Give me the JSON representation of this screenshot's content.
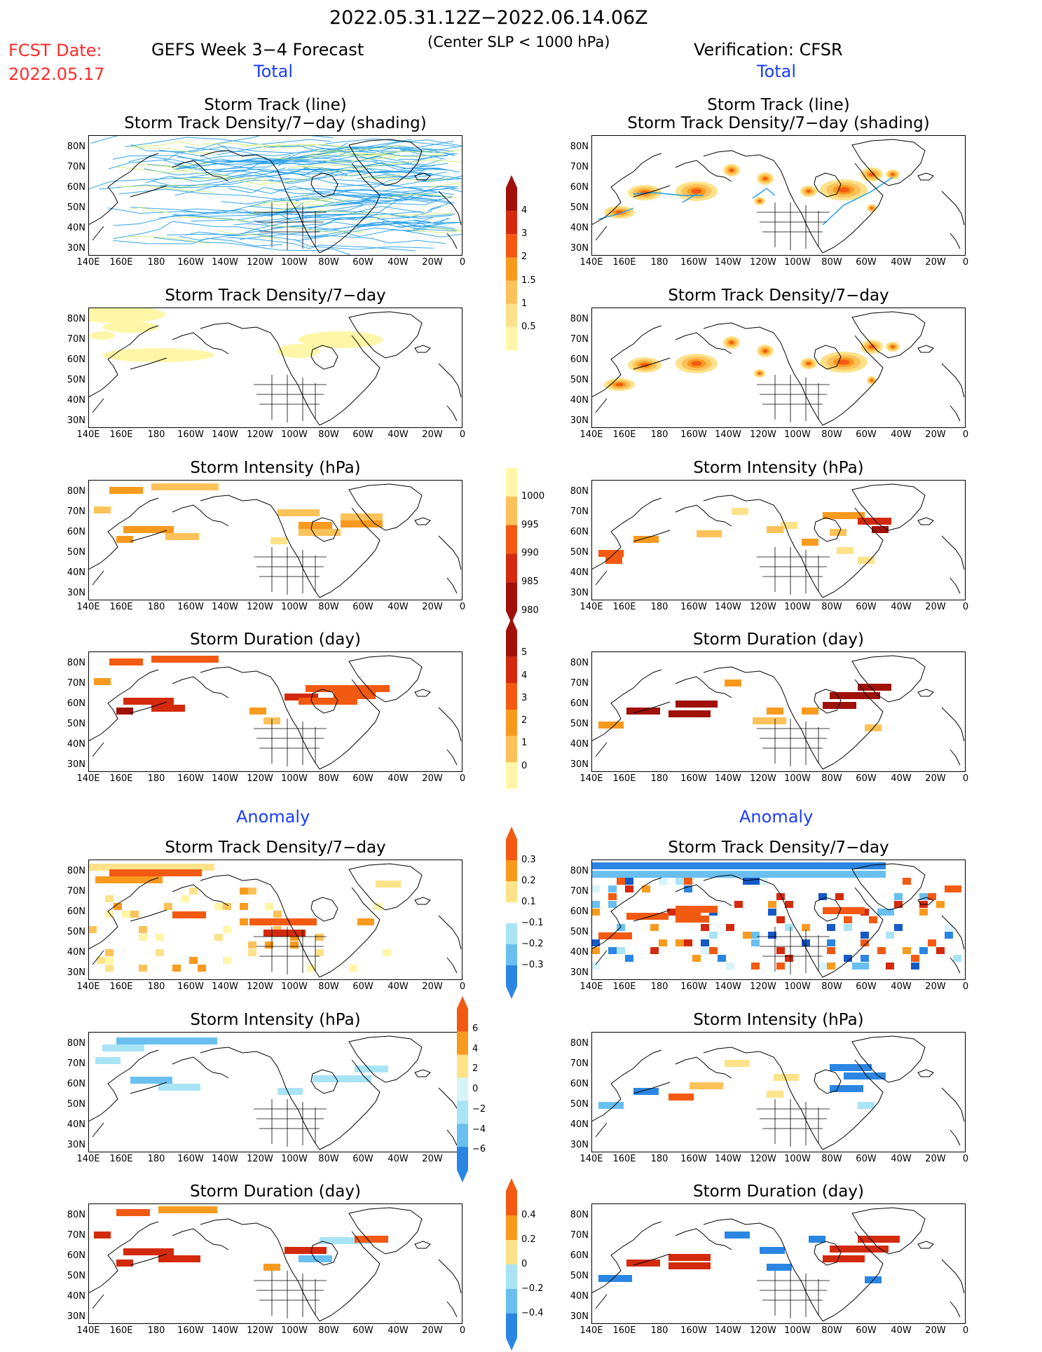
{
  "header": {
    "period": "2022.05.31.12Z−2022.06.14.06Z",
    "fcst_label": "FCST Date:",
    "fcst_date": "2022.05.17",
    "left_title": "GEFS Week 3−4 Forecast",
    "center_note": "(Center SLP < 1000 hPa)",
    "right_title": "Verification: CFSR",
    "total_label": "Total",
    "anomaly_label": "Anomaly"
  },
  "panel_titles": {
    "track_line": "Storm Track (line)",
    "track_shading": "Storm Track Density/7−day (shading)",
    "density": "Storm Track Density/7−day",
    "intensity": "Storm Intensity (hPa)",
    "duration": "Storm Duration (day)"
  },
  "axes": {
    "lat_labels": [
      "80N",
      "70N",
      "60N",
      "50N",
      "40N",
      "30N"
    ],
    "lon_labels": [
      "140E",
      "160E",
      "180",
      "160W",
      "140W",
      "120W",
      "100W",
      "80W",
      "60W",
      "40W",
      "20W",
      "0"
    ]
  },
  "colorbars": {
    "density_total": [
      "4",
      "3",
      "2",
      "1.5",
      "1",
      "0.5"
    ],
    "intensity_total": [
      "1000",
      "995",
      "990",
      "985",
      "980"
    ],
    "duration_total": [
      "5",
      "4",
      "3",
      "2",
      "1",
      "0"
    ],
    "density_anom": [
      "0.3",
      "0.2",
      "0.1",
      "−0.1",
      "−0.2",
      "−0.3"
    ],
    "intensity_anom": [
      "6",
      "4",
      "2",
      "0",
      "−2",
      "−4",
      "−6"
    ],
    "duration_anom": [
      "0.4",
      "0.2",
      "0",
      "−0.2",
      "−0.4"
    ]
  },
  "colors": {
    "track_line": "#1e9be8",
    "warm": [
      "#fff6a8",
      "#fde28a",
      "#fbc25a",
      "#f89a1e",
      "#f25a12",
      "#d32a0e",
      "#a0110a"
    ],
    "cool": [
      "#d7f4fb",
      "#a9e3f6",
      "#69bfef",
      "#2a86e2",
      "#1659c6"
    ]
  }
}
